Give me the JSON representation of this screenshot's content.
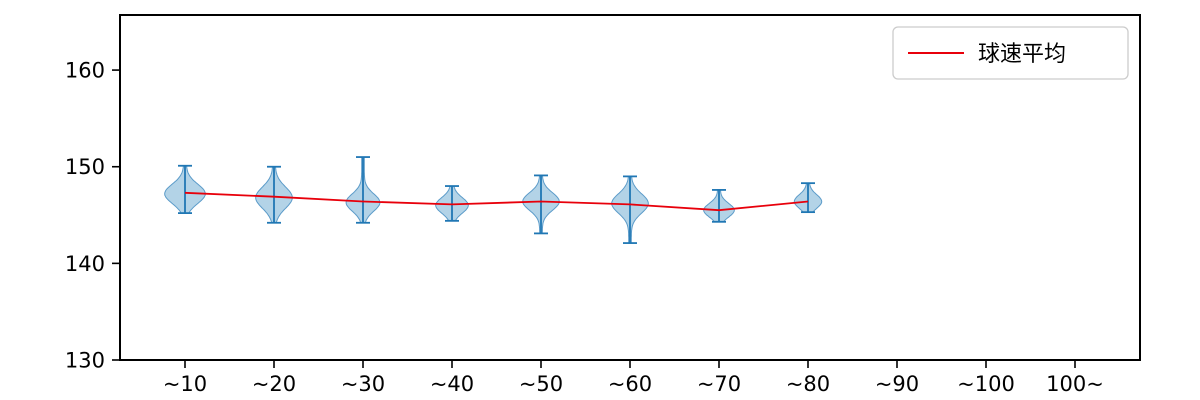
{
  "figure": {
    "background": "#ffffff"
  },
  "chart_data": {
    "type": "violin",
    "title": "",
    "xlabel": "",
    "ylabel": "",
    "categories": [
      "~10",
      "~20",
      "~30",
      "~40",
      "~50",
      "~60",
      "~70",
      "~80",
      "~90",
      "~100",
      "100~"
    ],
    "ylim": [
      130,
      165.7
    ],
    "yticks": [
      130,
      140,
      150,
      160
    ],
    "grid": false,
    "legend": {
      "label": "球速平均",
      "position": "upper right"
    },
    "colors": {
      "violin_fill": "#a6cbe3",
      "violin_edge": "#5b9bc9",
      "violin_line": "#2077b4",
      "mean_line": "#e8000b",
      "axis": "#000000",
      "legend_border": "#cccccc",
      "legend_bg": "#ffffff",
      "text": "#000000"
    },
    "violins": [
      {
        "label": "~10",
        "min": 145.2,
        "max": 150.1,
        "mode": 147.2,
        "sd": 1.0,
        "rel_width": 0.95
      },
      {
        "label": "~20",
        "min": 144.2,
        "max": 150.0,
        "mode": 146.8,
        "sd": 1.1,
        "rel_width": 0.85
      },
      {
        "label": "~30",
        "min": 144.2,
        "max": 151.0,
        "mode": 146.3,
        "sd": 0.9,
        "rel_width": 0.78
      },
      {
        "label": "~40",
        "min": 144.4,
        "max": 148.0,
        "mode": 146.0,
        "sd": 0.8,
        "rel_width": 0.75
      },
      {
        "label": "~50",
        "min": 143.1,
        "max": 149.1,
        "mode": 146.4,
        "sd": 0.9,
        "rel_width": 0.85
      },
      {
        "label": "~60",
        "min": 142.1,
        "max": 149.0,
        "mode": 146.2,
        "sd": 1.0,
        "rel_width": 0.85
      },
      {
        "label": "~70",
        "min": 144.3,
        "max": 147.6,
        "mode": 145.5,
        "sd": 0.7,
        "rel_width": 0.7
      },
      {
        "label": "~80",
        "min": 145.3,
        "max": 148.3,
        "mode": 146.4,
        "sd": 0.7,
        "rel_width": 0.62
      },
      null,
      null,
      null
    ],
    "mean_series": {
      "name": "球速平均",
      "values": [
        147.3,
        146.9,
        146.4,
        146.1,
        146.4,
        146.1,
        145.5,
        146.4,
        null,
        null,
        null
      ]
    }
  }
}
